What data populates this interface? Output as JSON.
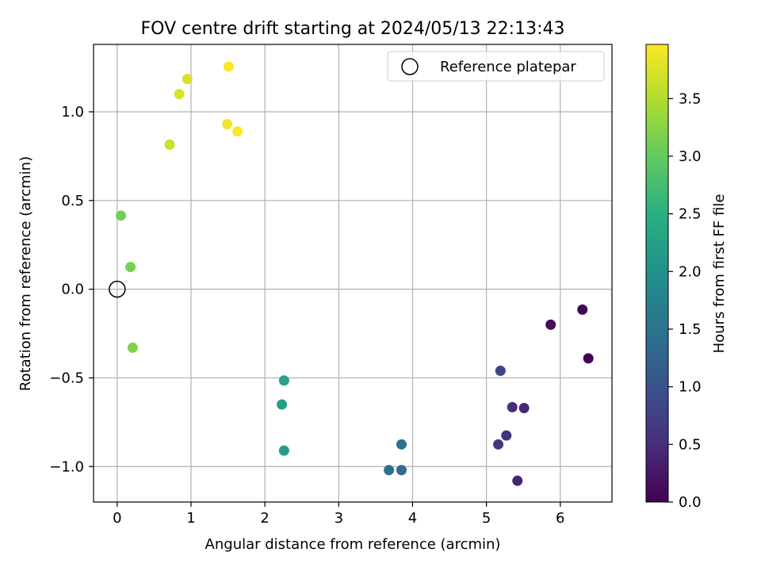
{
  "chart_data": {
    "type": "scatter",
    "title": "FOV centre drift starting at 2024/05/13 22:13:43",
    "xlabel": "Angular distance from reference (arcmin)",
    "ylabel": "Rotation from reference (arcmin)",
    "xlim": [
      -0.32,
      6.7
    ],
    "ylim": [
      -1.2,
      1.38
    ],
    "xticks": [
      0,
      1,
      2,
      3,
      4,
      5,
      6
    ],
    "xtick_labels": [
      "0",
      "1",
      "2",
      "3",
      "4",
      "5",
      "6"
    ],
    "yticks": [
      -1.0,
      -0.5,
      0.0,
      0.5,
      1.0
    ],
    "ytick_labels": [
      "−1.0",
      "−0.5",
      "0.0",
      "0.5",
      "1.0"
    ],
    "grid": true,
    "legend": {
      "placement": "top-right",
      "entries": [
        "Reference platepar"
      ]
    },
    "reference_point": {
      "x": 0.0,
      "y": 0.0,
      "label": "Reference platepar",
      "marker": "open-circle"
    },
    "colorbar": {
      "label": "Hours from first FF file",
      "colormap": "viridis",
      "range": [
        0.0,
        3.97
      ],
      "ticks": [
        0.0,
        0.5,
        1.0,
        1.5,
        2.0,
        2.5,
        3.0,
        3.5
      ],
      "tick_labels": [
        "0.0",
        "0.5",
        "1.0",
        "1.5",
        "2.0",
        "2.5",
        "3.0",
        "3.5"
      ]
    },
    "points": [
      {
        "x": 6.38,
        "y": -0.39,
        "hours": 0.0
      },
      {
        "x": 6.3,
        "y": -0.115,
        "hours": 0.04
      },
      {
        "x": 5.87,
        "y": -0.2,
        "hours": 0.12
      },
      {
        "x": 5.42,
        "y": -1.08,
        "hours": 0.4
      },
      {
        "x": 5.51,
        "y": -0.67,
        "hours": 0.44
      },
      {
        "x": 5.35,
        "y": -0.665,
        "hours": 0.5
      },
      {
        "x": 5.27,
        "y": -0.825,
        "hours": 0.58
      },
      {
        "x": 5.16,
        "y": -0.875,
        "hours": 0.66
      },
      {
        "x": 5.19,
        "y": -0.46,
        "hours": 0.8
      },
      {
        "x": 3.85,
        "y": -1.02,
        "hours": 1.4
      },
      {
        "x": 3.68,
        "y": -1.02,
        "hours": 1.48
      },
      {
        "x": 3.85,
        "y": -0.875,
        "hours": 1.52
      },
      {
        "x": 2.26,
        "y": -0.91,
        "hours": 2.2
      },
      {
        "x": 2.23,
        "y": -0.65,
        "hours": 2.25
      },
      {
        "x": 2.26,
        "y": -0.515,
        "hours": 2.3
      },
      {
        "x": 0.21,
        "y": -0.33,
        "hours": 3.2
      },
      {
        "x": 0.18,
        "y": 0.125,
        "hours": 3.15
      },
      {
        "x": 0.05,
        "y": 0.415,
        "hours": 3.1
      },
      {
        "x": 0.71,
        "y": 0.815,
        "hours": 3.65
      },
      {
        "x": 0.84,
        "y": 1.1,
        "hours": 3.75
      },
      {
        "x": 0.95,
        "y": 1.185,
        "hours": 3.72
      },
      {
        "x": 1.51,
        "y": 1.255,
        "hours": 3.95
      },
      {
        "x": 1.49,
        "y": 0.93,
        "hours": 3.9
      },
      {
        "x": 1.63,
        "y": 0.89,
        "hours": 3.95
      }
    ]
  }
}
